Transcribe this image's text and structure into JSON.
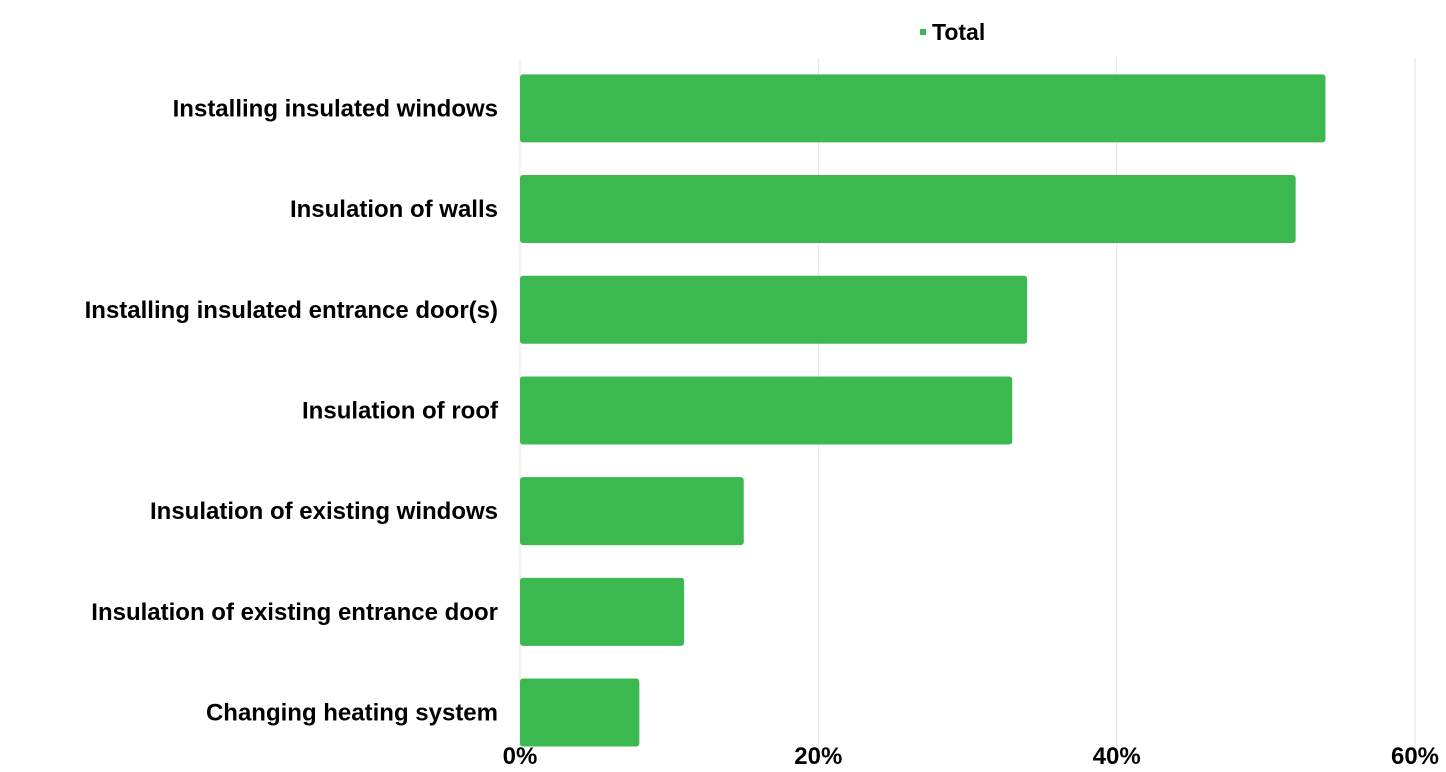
{
  "chart_data": {
    "type": "bar",
    "orientation": "horizontal",
    "categories": [
      "Installing insulated windows",
      "Insulation of walls",
      "Installing insulated entrance door(s)",
      "Insulation of roof",
      "Insulation of existing windows",
      "Insulation of existing entrance door",
      "Changing heating system"
    ],
    "series": [
      {
        "name": "Total",
        "values": [
          54,
          52,
          34,
          33,
          15,
          11,
          8
        ],
        "color": "#3cb850"
      }
    ],
    "xlim": [
      0,
      60
    ],
    "xticks": [
      0,
      20,
      40,
      60
    ],
    "xtick_labels": [
      "0%",
      "20%",
      "40%",
      "60%"
    ],
    "grid": true,
    "grid_color": "#e3e3e3",
    "legend_position": "top-center",
    "title": "",
    "xlabel": "",
    "ylabel": ""
  }
}
